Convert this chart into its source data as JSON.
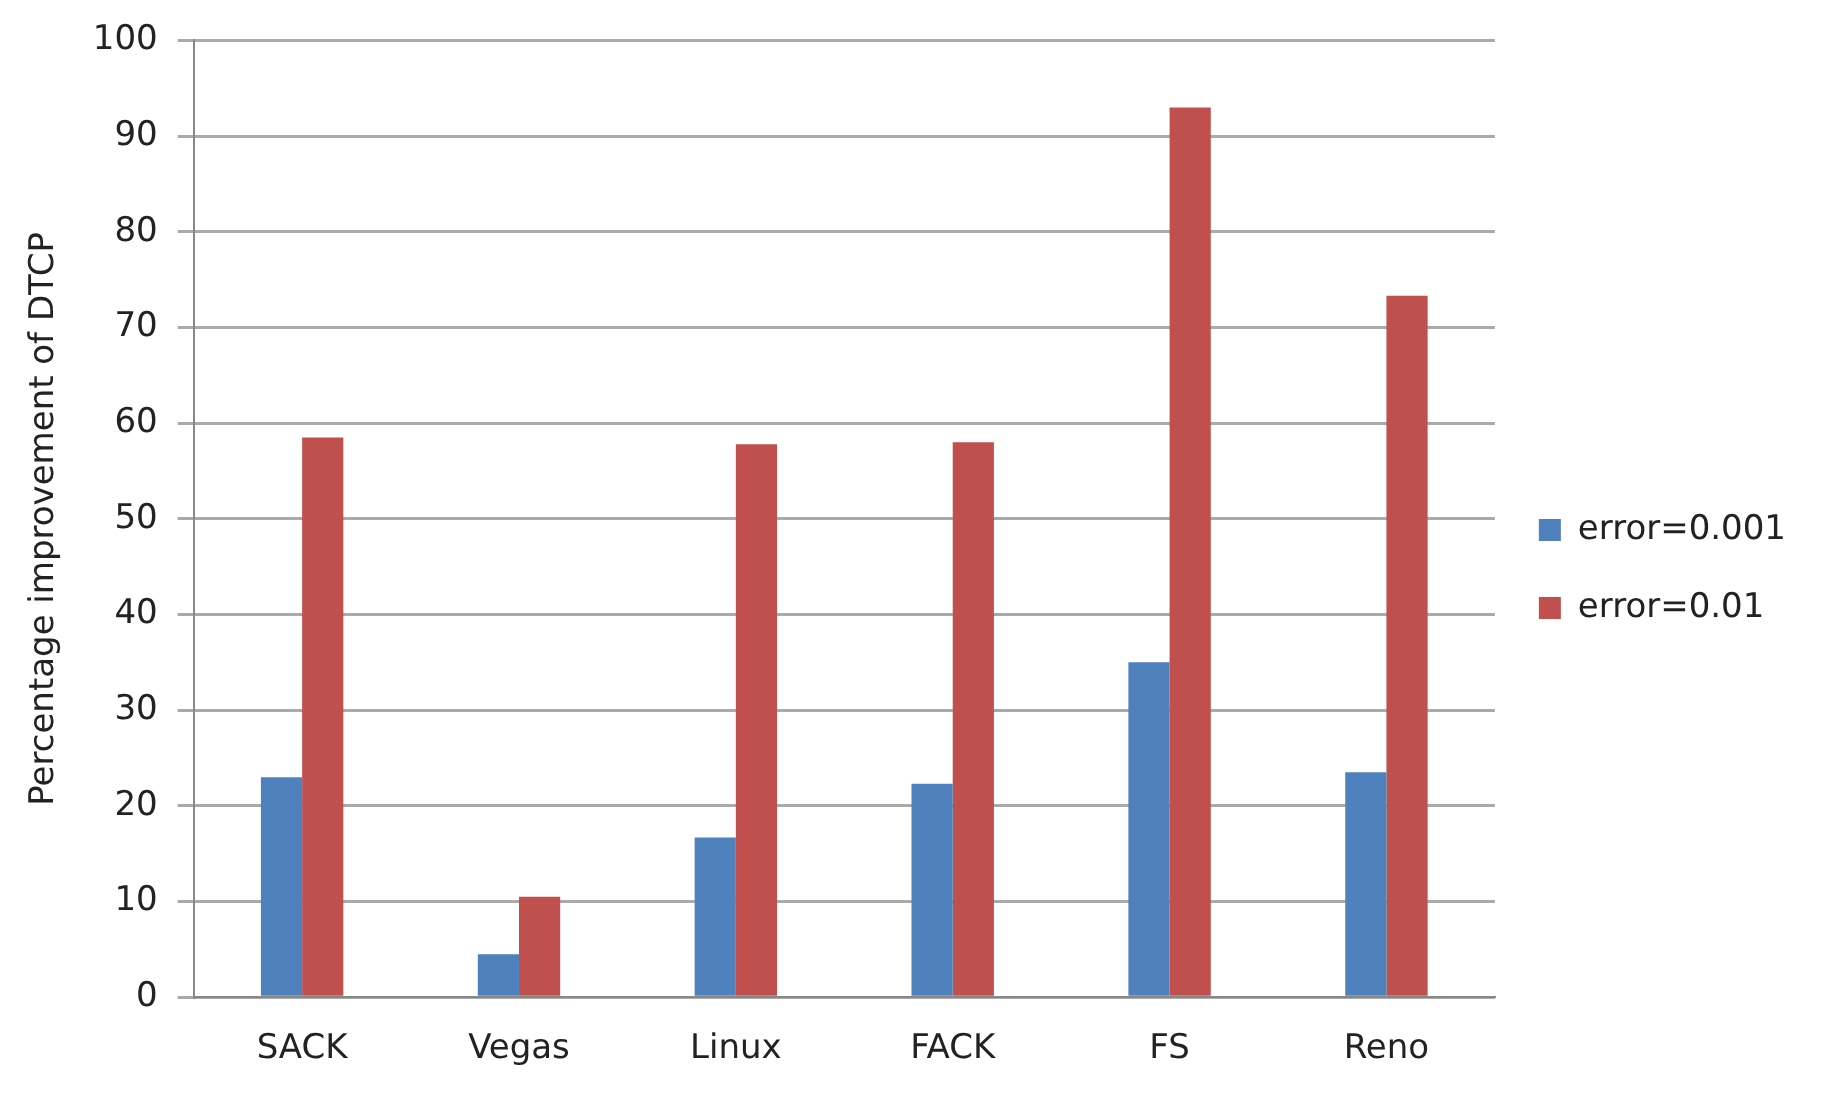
{
  "chart_data": {
    "type": "bar",
    "ylabel": "Percentage improvement of DTCP",
    "categories": [
      "SACK",
      "Vegas",
      "Linux",
      "FACK",
      "FS",
      "Reno"
    ],
    "series": [
      {
        "name": "error=0.001",
        "color": "#4f81bd",
        "values": [
          23,
          4.5,
          16.7,
          22.3,
          35,
          23.5
        ]
      },
      {
        "name": "error=0.01",
        "color": "#c0504d",
        "values": [
          58.5,
          10.5,
          57.8,
          58,
          93,
          73.3
        ]
      }
    ],
    "ylim": [
      0,
      100
    ],
    "yticks": [
      0,
      10,
      20,
      30,
      40,
      50,
      60,
      70,
      80,
      90,
      100
    ],
    "grid": "y",
    "legend": "right"
  }
}
